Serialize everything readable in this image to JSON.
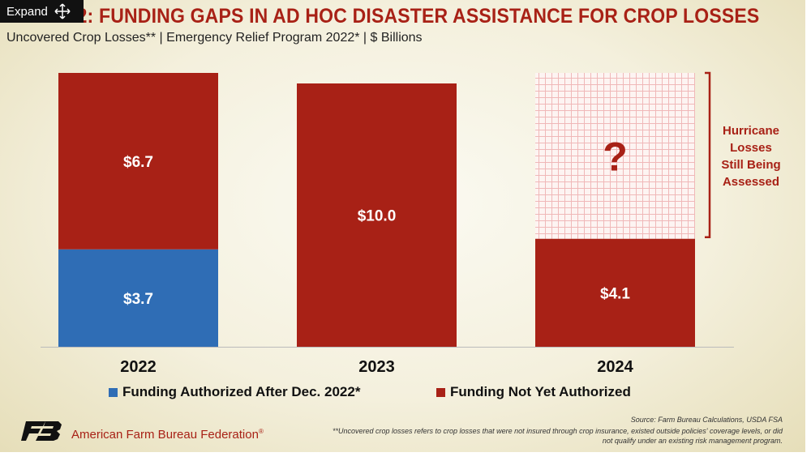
{
  "title": "FIGURE 2: FUNDING GAPS IN AD HOC DISASTER ASSISTANCE FOR CROP LOSSES",
  "subtitle": "Uncovered Crop Losses** | Emergency Relief Program 2022* | $ Billions",
  "expand_button": {
    "label": "Expand",
    "icon": "move-arrows-icon"
  },
  "chart_data": {
    "type": "bar",
    "stacked": true,
    "categories": [
      "2022",
      "2023",
      "2024"
    ],
    "series": [
      {
        "name": "Funding Authorized After Dec. 2022*",
        "values": [
          3.7,
          0,
          0
        ],
        "labels": [
          "$3.7",
          "",
          ""
        ],
        "color": "#2f6db5"
      },
      {
        "name": "Funding Not Yet Authorized",
        "values": [
          6.7,
          10.0,
          4.1
        ],
        "labels": [
          "$6.7",
          "$10.0",
          "$4.1"
        ],
        "color": "#a82116"
      }
    ],
    "unknown_extension": {
      "category": "2024",
      "symbol": "?",
      "note": "Hurricane Losses Still Being Assessed",
      "pattern": "hatched-grid"
    },
    "ylim": [
      0,
      10.4
    ],
    "legend_position": "bottom"
  },
  "legend": [
    {
      "label": "Funding Authorized After Dec. 2022*",
      "color": "#2f6db5"
    },
    {
      "label": "Funding Not Yet Authorized",
      "color": "#a82116"
    }
  ],
  "annotation_lines": [
    "Hurricane",
    "Losses",
    "Still Being",
    "Assessed"
  ],
  "footer": {
    "org": "American Farm Bureau Federation",
    "org_mark": "®",
    "source": "Source: Farm Bureau Calculations, USDA FSA",
    "note": "**Uncovered crop losses refers to crop losses that were not insured through crop insurance, existed outside policies' coverage levels, or did not qualify under an existing risk management program."
  },
  "colors": {
    "accent": "#a82116",
    "blue": "#2f6db5",
    "hatch": "#f0b8b8"
  }
}
